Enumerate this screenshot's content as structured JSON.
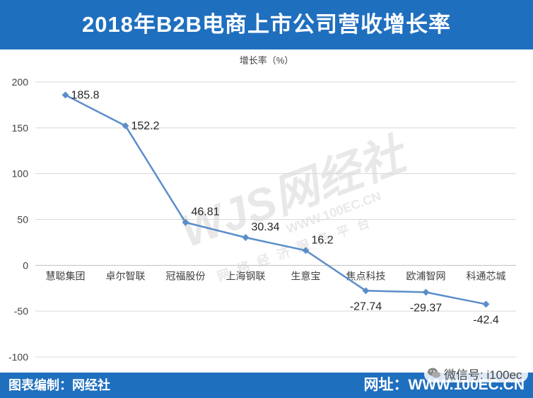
{
  "header": {
    "title": "2018年B2B电商上市公司营收增长率"
  },
  "footer": {
    "left_label": "图表编制：网经社",
    "right_label": "网址：WWW.100EC.CN"
  },
  "wechat": {
    "label": "微信号: i100ec",
    "icon": "wechat-icon"
  },
  "watermark": {
    "logo": "WJS网经社",
    "url": "WWW.100EC.CN",
    "tagline": "网络经济服务平台"
  },
  "colors": {
    "brand": "#1f6fbf",
    "line": "#5b8ec9"
  },
  "chart_data": {
    "type": "line",
    "title": "增长率（%）",
    "categories": [
      "慧聪集团",
      "卓尔智联",
      "冠福股份",
      "上海钢联",
      "生意宝",
      "焦点科技",
      "欧浦智网",
      "科通芯城"
    ],
    "series": [
      {
        "values": [
          185.8,
          152.2,
          46.81,
          30.34,
          16.2,
          -27.74,
          -29.37,
          -42.4
        ]
      }
    ],
    "data_labels": [
      "185.8",
      "152.2",
      "46.81",
      "30.34",
      "16.2",
      "-27.74",
      "-29.37",
      "-42.4"
    ],
    "yticks": [
      "200",
      "150",
      "100",
      "50",
      "0",
      "-50",
      "-100"
    ],
    "ylim": [
      -100,
      200
    ],
    "grid": "horizontal"
  }
}
